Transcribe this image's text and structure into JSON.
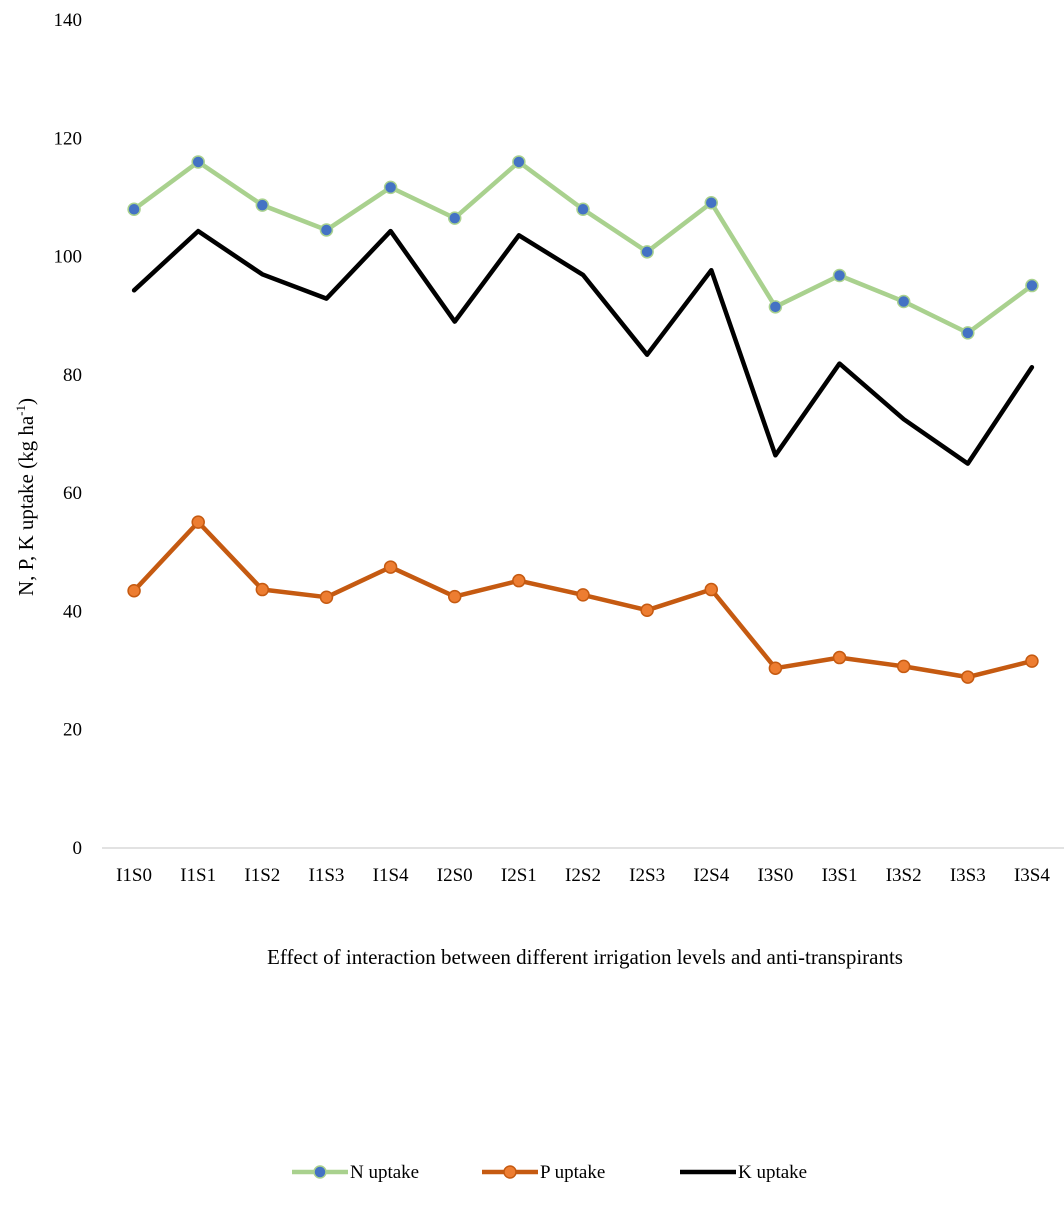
{
  "chart_data": {
    "type": "line",
    "title": "",
    "xlabel": "Effect of interaction between different irrigation levels and anti-transpirants",
    "ylabel": "N, P, K uptake (kg ha",
    "ylabel_sup": "-1",
    "ylabel_end": ")",
    "ylim": [
      0,
      140
    ],
    "yticks": [
      "0",
      "20",
      "40",
      "60",
      "80",
      "100",
      "120",
      "140"
    ],
    "categories": [
      "I1S0",
      "I1S1",
      "I1S2",
      "I1S3",
      "I1S4",
      "I2S0",
      "I2S1",
      "I2S2",
      "I2S3",
      "I2S4",
      "I3S0",
      "I3S1",
      "I3S2",
      "I3S3",
      "I3S4"
    ],
    "grid": false,
    "legend_position": "bottom",
    "series": [
      {
        "name": "N uptake",
        "values": [
          108,
          116,
          108.7,
          104.5,
          111.7,
          106.5,
          116,
          108,
          100.8,
          109.1,
          91.5,
          96.8,
          92.4,
          87.1,
          95.1
        ],
        "line_color": "#a9d18e",
        "marker": "circle",
        "marker_fill": "#4472c4",
        "marker_stroke": "#a9d18e"
      },
      {
        "name": "P uptake",
        "values": [
          43.5,
          55.1,
          43.7,
          42.4,
          47.5,
          42.5,
          45.2,
          42.8,
          40.2,
          43.7,
          30.4,
          32.2,
          30.7,
          28.9,
          31.6
        ],
        "line_color": "#c55a11",
        "marker": "circle",
        "marker_fill": "#ed7d31",
        "marker_stroke": "#c55a11"
      },
      {
        "name": "K uptake",
        "values": [
          94.3,
          104.3,
          97.0,
          92.9,
          104.3,
          89.0,
          103.6,
          96.9,
          83.4,
          97.7,
          66.4,
          81.9,
          72.5,
          65.0,
          81.3
        ],
        "line_color": "#000000",
        "marker": "none"
      }
    ]
  }
}
